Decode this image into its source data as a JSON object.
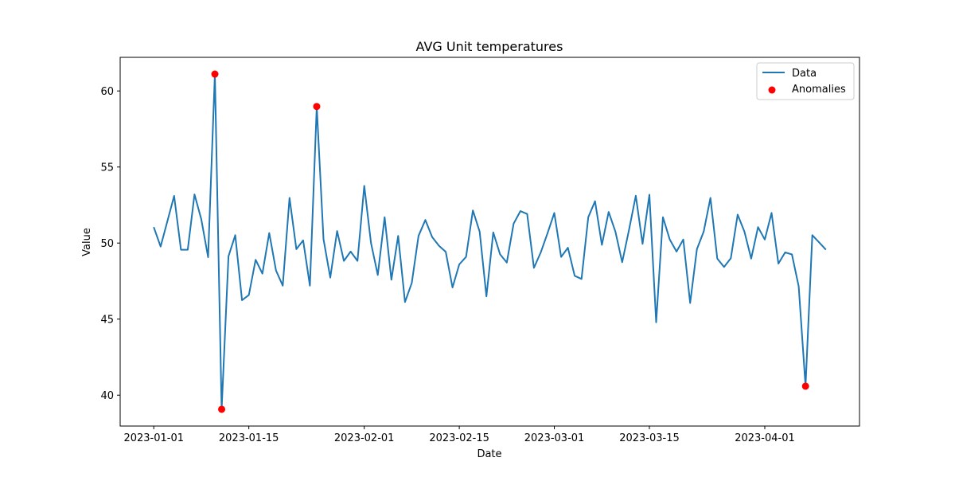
{
  "chart_data": {
    "type": "line",
    "title": "AVG Unit temperatures",
    "xlabel": "Date",
    "ylabel": "Value",
    "x_start": "2023-01-01",
    "x_step_days": 1,
    "xlim_days": [
      -4.95,
      103.95
    ],
    "ylim": [
      37.97,
      62.21
    ],
    "x_ticks": [
      {
        "day": 0,
        "label": "2023-01-01"
      },
      {
        "day": 14,
        "label": "2023-01-15"
      },
      {
        "day": 31,
        "label": "2023-02-01"
      },
      {
        "day": 45,
        "label": "2023-02-15"
      },
      {
        "day": 59,
        "label": "2023-03-01"
      },
      {
        "day": 73,
        "label": "2023-03-15"
      },
      {
        "day": 90,
        "label": "2023-04-01"
      }
    ],
    "y_ticks": [
      40,
      45,
      50,
      55,
      60
    ],
    "grid": false,
    "legend": {
      "placement": "top-right",
      "entries": [
        "Data",
        "Anomalies"
      ]
    },
    "series": [
      {
        "name": "Data",
        "type": "line",
        "color": "#1f77b4",
        "values": [
          51.05,
          49.77,
          51.43,
          53.1,
          49.56,
          49.56,
          53.2,
          51.57,
          49.07,
          61.11,
          39.07,
          49.13,
          50.52,
          46.24,
          46.59,
          48.9,
          47.99,
          50.66,
          48.2,
          47.2,
          52.97,
          49.6,
          50.18,
          47.2,
          58.98,
          50.26,
          47.73,
          50.79,
          48.83,
          49.44,
          48.83,
          53.76,
          50.0,
          47.9,
          51.7,
          47.59,
          50.47,
          46.12,
          47.38,
          50.47,
          51.52,
          50.4,
          49.83,
          49.42,
          47.08,
          48.6,
          49.09,
          52.15,
          50.75,
          46.5,
          50.7,
          49.27,
          48.72,
          51.28,
          52.1,
          51.91,
          48.37,
          49.39,
          50.65,
          51.98,
          49.09,
          49.69,
          47.85,
          47.64,
          51.7,
          52.75,
          49.88,
          52.05,
          50.75,
          48.74,
          50.87,
          53.11,
          49.95,
          53.18,
          44.79,
          51.7,
          50.23,
          49.44,
          50.23,
          46.06,
          49.6,
          50.75,
          52.97,
          48.98,
          48.43,
          49.0,
          51.87,
          50.75,
          48.98,
          51.05,
          50.23,
          51.98,
          48.65,
          49.39,
          49.25,
          47.15,
          40.59,
          50.52,
          50.05,
          49.56
        ]
      },
      {
        "name": "Anomalies",
        "type": "scatter",
        "color": "#ff0000",
        "points": [
          {
            "day": 9,
            "value": 61.11
          },
          {
            "day": 10,
            "value": 39.07
          },
          {
            "day": 24,
            "value": 58.98
          },
          {
            "day": 96,
            "value": 40.59
          }
        ]
      }
    ]
  }
}
